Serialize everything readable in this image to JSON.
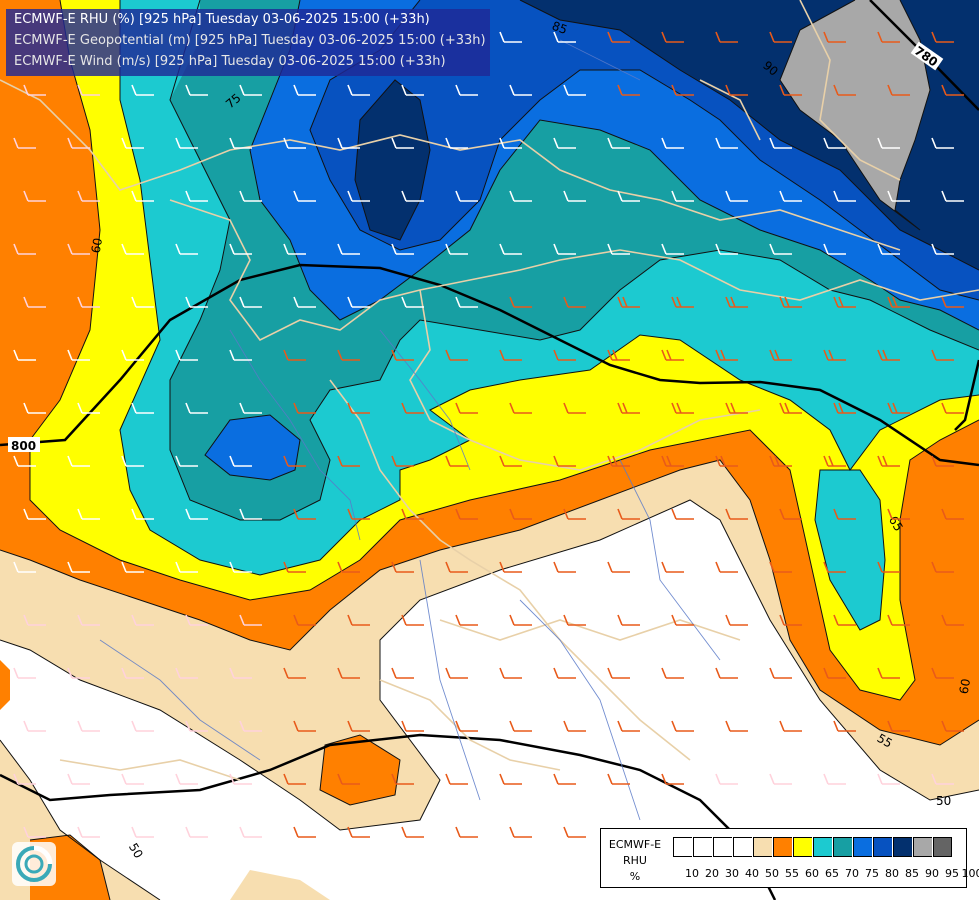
{
  "titles": {
    "line1": "ECMWF-E RHU (%) [925 hPa] Tuesday 03-06-2025 15:00 (+33h)",
    "line2": "ECMWF-E Geopotential (m) [925 hPa] Tuesday 03-06-2025 15:00 (+33h)",
    "line3": "ECMWF-E Wind (m/s) [925 hPa] Tuesday 03-06-2025 15:00 (+33h)",
    "line1_color": "#ffffff",
    "line2_color": "#e6e6e6",
    "line3_color": "#e6e6e6"
  },
  "legend": {
    "title1": "ECMWF-E",
    "title2": "RHU",
    "title3": "%",
    "ticks": [
      "10",
      "20",
      "30",
      "40",
      "50",
      "55",
      "60",
      "65",
      "70",
      "75",
      "80",
      "85",
      "90",
      "95",
      "100"
    ],
    "colors": [
      "#ffffff",
      "#ffffff",
      "#ffffff",
      "#ffffff",
      "#f7deb0",
      "#ff8000",
      "#ffff00",
      "#1ccad0",
      "#179fa3",
      "#0a6ee0",
      "#0752c0",
      "#03306e",
      "#a8a8a8",
      "#646464"
    ]
  },
  "contour_labels": {
    "rhu": [
      "60",
      "75",
      "85",
      "90",
      "65",
      "60",
      "55",
      "50",
      "50"
    ],
    "geopotential": [
      "780",
      "800"
    ]
  },
  "colors": {
    "rh_50": "#f7deb0",
    "rh_55": "#ff8000",
    "rh_60": "#ffff00",
    "rh_65": "#1ccad0",
    "rh_70": "#179fa3",
    "rh_75": "#0a6ee0",
    "rh_80": "#0752c0",
    "rh_85": "#03306e",
    "rh_90": "#a8a8a8",
    "border": "#e8d0a8",
    "river": "#5a7ac8",
    "barb_strong": "#e85a1a",
    "barb_weak": "#ffd2dc",
    "barb_light": "#ffffff"
  },
  "icons": {
    "logo": "ecmwf-logo-icon"
  }
}
